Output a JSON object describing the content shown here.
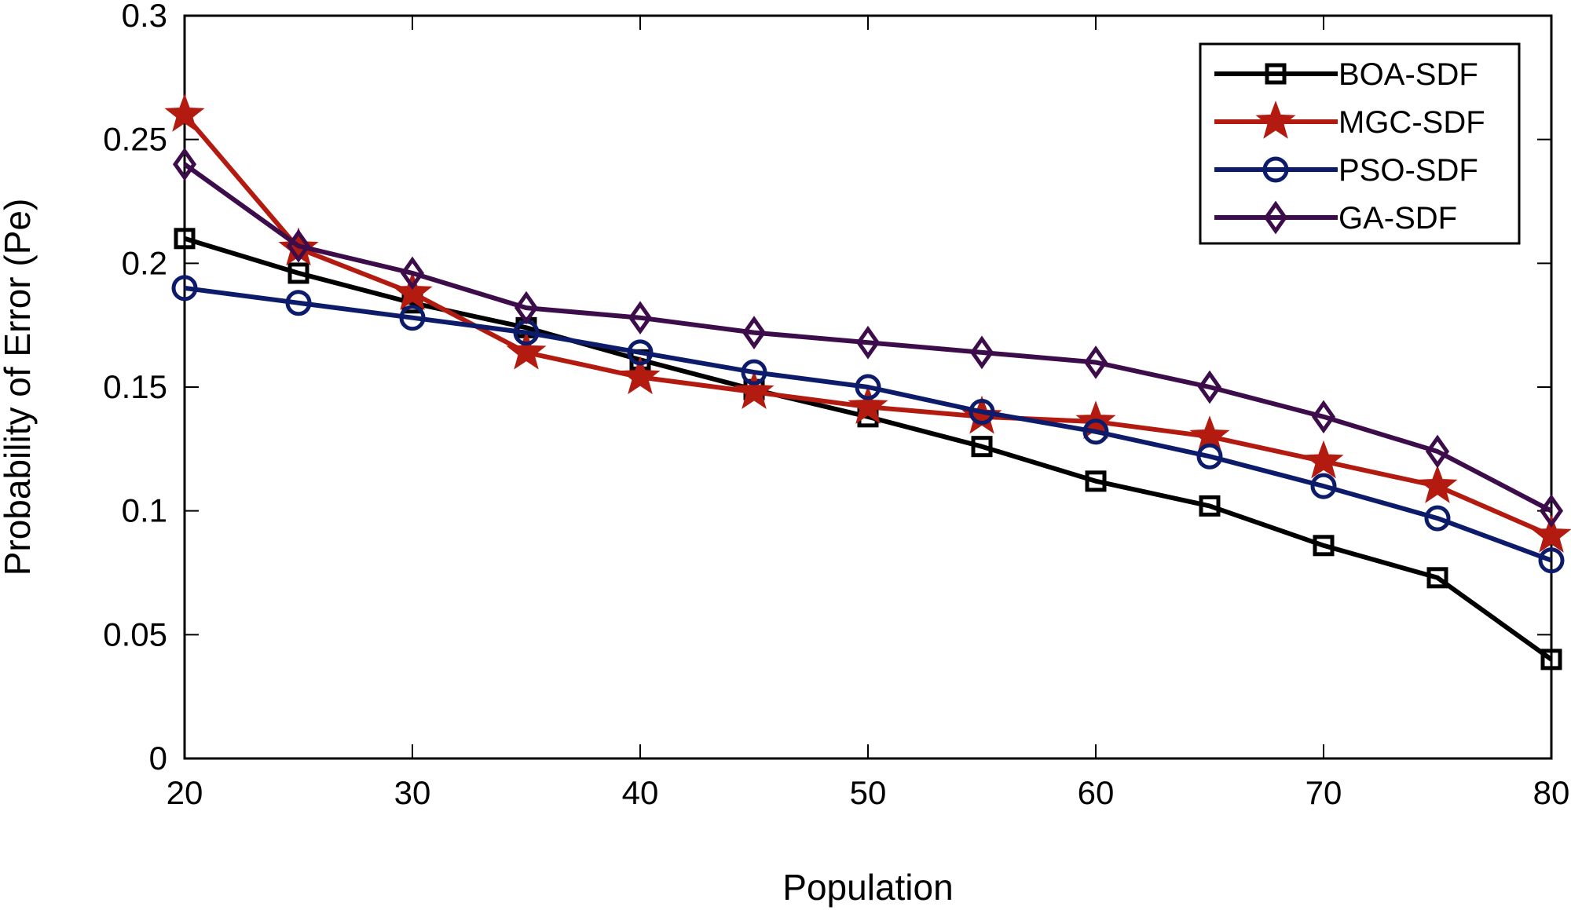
{
  "chart_data": {
    "type": "line",
    "title": "",
    "xlabel": "Population",
    "ylabel": "Probability of Error (Pe)",
    "xlim": [
      20,
      80
    ],
    "ylim": [
      0,
      0.3
    ],
    "xticks": [
      20,
      30,
      40,
      50,
      60,
      70,
      80
    ],
    "yticks": [
      0,
      0.05,
      0.1,
      0.15,
      0.2,
      0.25,
      0.3
    ],
    "xtick_labels": [
      "20",
      "30",
      "40",
      "50",
      "60",
      "70",
      "80"
    ],
    "ytick_labels": [
      "0",
      "0.05",
      "0.1",
      "0.15",
      "0.2",
      "0.25",
      "0.3"
    ],
    "x": [
      20,
      25,
      30,
      35,
      40,
      45,
      50,
      55,
      60,
      65,
      70,
      75,
      80
    ],
    "grid": false,
    "legend_position": "top-right",
    "series": [
      {
        "name": "BOA-SDF",
        "color": "#000000",
        "marker": "square",
        "values": [
          0.21,
          0.196,
          0.184,
          0.174,
          0.161,
          0.149,
          0.138,
          0.126,
          0.112,
          0.102,
          0.086,
          0.073,
          0.04
        ]
      },
      {
        "name": "MGC-SDF",
        "color": "#b31b10",
        "marker": "star",
        "values": [
          0.26,
          0.206,
          0.188,
          0.164,
          0.154,
          0.148,
          0.142,
          0.138,
          0.136,
          0.13,
          0.12,
          0.11,
          0.09
        ]
      },
      {
        "name": "PSO-SDF",
        "color": "#0d1b6b",
        "marker": "circle",
        "values": [
          0.19,
          0.184,
          0.178,
          0.172,
          0.164,
          0.156,
          0.15,
          0.14,
          0.132,
          0.122,
          0.11,
          0.097,
          0.08
        ]
      },
      {
        "name": "GA-SDF",
        "color": "#3c0d4a",
        "marker": "diamond",
        "values": [
          0.24,
          0.207,
          0.196,
          0.182,
          0.178,
          0.172,
          0.168,
          0.164,
          0.16,
          0.15,
          0.138,
          0.124,
          0.1
        ]
      }
    ]
  }
}
